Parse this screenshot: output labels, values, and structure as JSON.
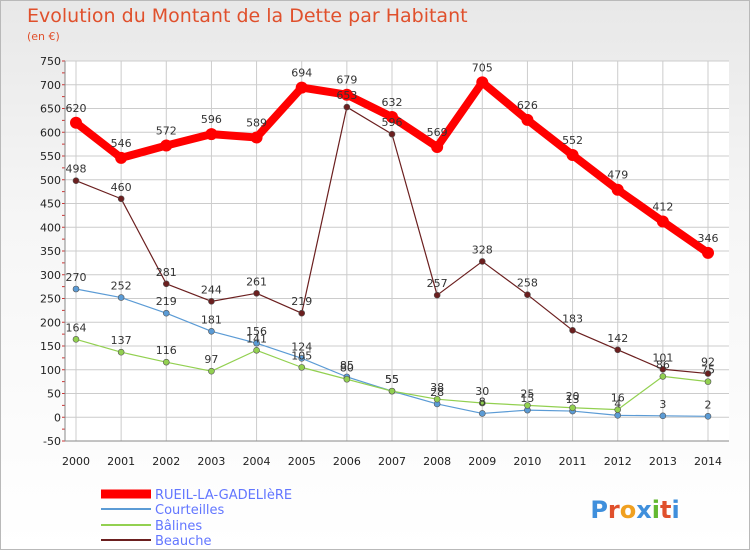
{
  "title": "Evolution du Montant de la Dette par Habitant",
  "subtitle": "(en €)",
  "brand": "Proxiti",
  "chart_data": {
    "type": "line",
    "x": [
      "2000",
      "2001",
      "2002",
      "2003",
      "2004",
      "2005",
      "2006",
      "2007",
      "2008",
      "2009",
      "2010",
      "2011",
      "2012",
      "2013",
      "2014"
    ],
    "ylim": [
      -50,
      750
    ],
    "yticks": [
      -50,
      0,
      50,
      100,
      150,
      200,
      250,
      300,
      350,
      400,
      450,
      500,
      550,
      600,
      650,
      700,
      750
    ],
    "grid": true,
    "legend_position": "bottom-left",
    "series": [
      {
        "name": "RUEIL-LA-GADELIèRE",
        "color": "#ff0000",
        "values": [
          620,
          546,
          572,
          596,
          589,
          694,
          679,
          632,
          569,
          705,
          626,
          552,
          479,
          412,
          346
        ],
        "labels": [
          "620",
          "546",
          "572",
          "596",
          "589",
          "694",
          "679",
          "632",
          "569",
          "705",
          "626",
          "552",
          "479",
          "412",
          "346"
        ]
      },
      {
        "name": "Courteilles",
        "color": "#5b9bd5",
        "values": [
          270,
          252,
          219,
          181,
          156,
          124,
          85,
          55,
          28,
          8,
          15,
          13,
          4,
          3,
          2
        ],
        "labels": [
          "270",
          "252",
          "219",
          "181",
          "156",
          "124",
          "85",
          "55",
          "28",
          "8",
          "15",
          "13",
          "4",
          "3",
          "2"
        ]
      },
      {
        "name": "Bâlines",
        "color": "#92d050",
        "values": [
          164,
          137,
          116,
          97,
          141,
          105,
          80,
          55,
          38,
          30,
          25,
          20,
          16,
          86,
          75
        ],
        "labels": [
          "164",
          "137",
          "116",
          "97",
          "141",
          "105",
          "80",
          "55",
          "38",
          "30",
          "25",
          "20",
          "16",
          "86",
          "75"
        ]
      },
      {
        "name": "Beauche",
        "color": "#6b1f1f",
        "values": [
          498,
          460,
          281,
          244,
          261,
          219,
          653,
          596,
          257,
          328,
          258,
          183,
          142,
          101,
          92
        ],
        "labels": [
          "498",
          "460",
          "281",
          "244",
          "261",
          "219",
          "653",
          "596",
          "257",
          "328",
          "258",
          "183",
          "142",
          "101",
          "92"
        ]
      }
    ]
  }
}
